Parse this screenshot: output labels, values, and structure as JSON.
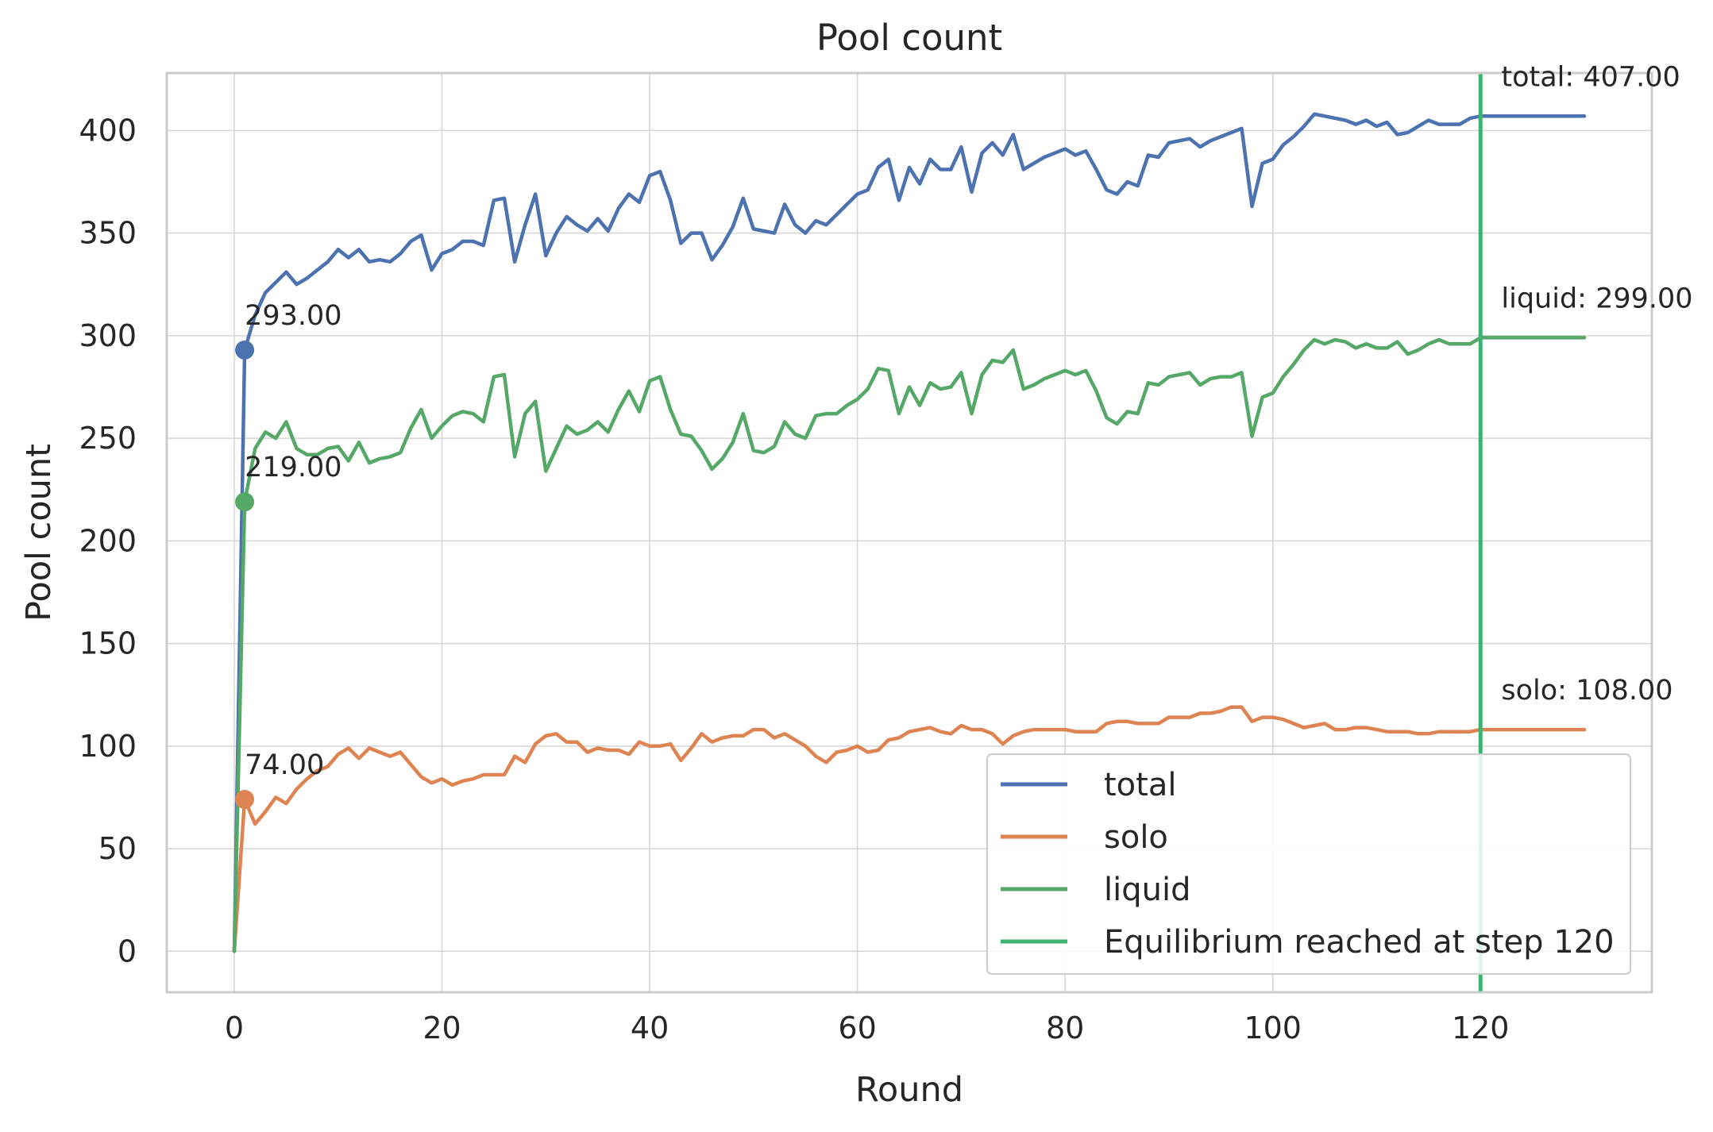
{
  "chart_data": {
    "type": "line",
    "title": "Pool count",
    "xlabel": "Round",
    "ylabel": "Pool count",
    "xlim": [
      -6.5,
      136.5
    ],
    "ylim": [
      -20,
      428
    ],
    "xticks": [
      0,
      20,
      40,
      60,
      80,
      100,
      120
    ],
    "yticks": [
      0,
      50,
      100,
      150,
      200,
      250,
      300,
      350,
      400
    ],
    "grid": true,
    "legend_position": "lower-right",
    "series": [
      {
        "name": "total",
        "color": "#4C72B0",
        "x": [
          0,
          1,
          2,
          3,
          4,
          5,
          6,
          7,
          8,
          9,
          10,
          11,
          12,
          13,
          14,
          15,
          16,
          17,
          18,
          19,
          20,
          21,
          22,
          23,
          24,
          25,
          26,
          27,
          28,
          29,
          30,
          31,
          32,
          33,
          34,
          35,
          36,
          37,
          38,
          39,
          40,
          41,
          42,
          43,
          44,
          45,
          46,
          47,
          48,
          49,
          50,
          51,
          52,
          53,
          54,
          55,
          56,
          57,
          58,
          59,
          60,
          61,
          62,
          63,
          64,
          65,
          66,
          67,
          68,
          69,
          70,
          71,
          72,
          73,
          74,
          75,
          76,
          77,
          78,
          79,
          80,
          81,
          82,
          83,
          84,
          85,
          86,
          87,
          88,
          89,
          90,
          91,
          92,
          93,
          94,
          95,
          96,
          97,
          98,
          99,
          100,
          101,
          102,
          103,
          104,
          105,
          106,
          107,
          108,
          109,
          110,
          111,
          112,
          113,
          114,
          115,
          116,
          117,
          118,
          119,
          120,
          121,
          122,
          123,
          124,
          125,
          126,
          127,
          128,
          129,
          130
        ],
        "values": [
          0,
          293,
          310,
          321,
          326,
          331,
          325,
          328,
          332,
          336,
          342,
          338,
          342,
          336,
          337,
          336,
          340,
          346,
          349,
          332,
          340,
          342,
          346,
          346,
          344,
          366,
          367,
          336,
          354,
          369,
          339,
          350,
          358,
          354,
          351,
          357,
          351,
          362,
          369,
          365,
          378,
          380,
          366,
          345,
          350,
          350,
          337,
          344,
          353,
          367,
          352,
          351,
          350,
          364,
          354,
          350,
          356,
          354,
          359,
          364,
          369,
          371,
          382,
          386,
          366,
          382,
          374,
          386,
          381,
          381,
          392,
          370,
          389,
          394,
          388,
          398,
          381,
          384,
          387,
          389,
          391,
          388,
          390,
          381,
          371,
          369,
          375,
          373,
          388,
          387,
          394,
          395,
          396,
          392,
          395,
          397,
          399,
          401,
          363,
          384,
          386,
          393,
          397,
          402,
          408,
          407,
          406,
          405,
          403,
          405,
          402,
          404,
          398,
          399,
          402,
          405,
          403,
          403,
          403,
          406,
          407,
          407,
          407,
          407,
          407,
          407,
          407,
          407,
          407,
          407,
          407
        ]
      },
      {
        "name": "solo",
        "color": "#DD8452",
        "x": [
          0,
          1,
          2,
          3,
          4,
          5,
          6,
          7,
          8,
          9,
          10,
          11,
          12,
          13,
          14,
          15,
          16,
          17,
          18,
          19,
          20,
          21,
          22,
          23,
          24,
          25,
          26,
          27,
          28,
          29,
          30,
          31,
          32,
          33,
          34,
          35,
          36,
          37,
          38,
          39,
          40,
          41,
          42,
          43,
          44,
          45,
          46,
          47,
          48,
          49,
          50,
          51,
          52,
          53,
          54,
          55,
          56,
          57,
          58,
          59,
          60,
          61,
          62,
          63,
          64,
          65,
          66,
          67,
          68,
          69,
          70,
          71,
          72,
          73,
          74,
          75,
          76,
          77,
          78,
          79,
          80,
          81,
          82,
          83,
          84,
          85,
          86,
          87,
          88,
          89,
          90,
          91,
          92,
          93,
          94,
          95,
          96,
          97,
          98,
          99,
          100,
          101,
          102,
          103,
          104,
          105,
          106,
          107,
          108,
          109,
          110,
          111,
          112,
          113,
          114,
          115,
          116,
          117,
          118,
          119,
          120,
          121,
          122,
          123,
          124,
          125,
          126,
          127,
          128,
          129,
          130
        ],
        "values": [
          0,
          74,
          62,
          68,
          75,
          72,
          79,
          84,
          88,
          90,
          96,
          99,
          94,
          99,
          97,
          95,
          97,
          91,
          85,
          82,
          84,
          81,
          83,
          84,
          86,
          86,
          86,
          95,
          92,
          101,
          105,
          106,
          102,
          102,
          97,
          99,
          98,
          98,
          96,
          102,
          100,
          100,
          101,
          93,
          99,
          106,
          102,
          104,
          105,
          105,
          108,
          108,
          104,
          106,
          103,
          100,
          95,
          92,
          97,
          98,
          100,
          97,
          98,
          103,
          104,
          107,
          108,
          109,
          107,
          106,
          110,
          108,
          108,
          106,
          101,
          105,
          107,
          108,
          108,
          108,
          108,
          107,
          107,
          107,
          111,
          112,
          112,
          111,
          111,
          111,
          114,
          114,
          114,
          116,
          116,
          117,
          119,
          119,
          112,
          114,
          114,
          113,
          111,
          109,
          110,
          111,
          108,
          108,
          109,
          109,
          108,
          107,
          107,
          107,
          106,
          106,
          107,
          107,
          107,
          107,
          108,
          108,
          108,
          108,
          108,
          108,
          108,
          108,
          108,
          108,
          108
        ]
      },
      {
        "name": "liquid",
        "color": "#55A868",
        "x": [
          0,
          1,
          2,
          3,
          4,
          5,
          6,
          7,
          8,
          9,
          10,
          11,
          12,
          13,
          14,
          15,
          16,
          17,
          18,
          19,
          20,
          21,
          22,
          23,
          24,
          25,
          26,
          27,
          28,
          29,
          30,
          31,
          32,
          33,
          34,
          35,
          36,
          37,
          38,
          39,
          40,
          41,
          42,
          43,
          44,
          45,
          46,
          47,
          48,
          49,
          50,
          51,
          52,
          53,
          54,
          55,
          56,
          57,
          58,
          59,
          60,
          61,
          62,
          63,
          64,
          65,
          66,
          67,
          68,
          69,
          70,
          71,
          72,
          73,
          74,
          75,
          76,
          77,
          78,
          79,
          80,
          81,
          82,
          83,
          84,
          85,
          86,
          87,
          88,
          89,
          90,
          91,
          92,
          93,
          94,
          95,
          96,
          97,
          98,
          99,
          100,
          101,
          102,
          103,
          104,
          105,
          106,
          107,
          108,
          109,
          110,
          111,
          112,
          113,
          114,
          115,
          116,
          117,
          118,
          119,
          120,
          121,
          122,
          123,
          124,
          125,
          126,
          127,
          128,
          129,
          130
        ],
        "values": [
          0,
          219,
          245,
          253,
          250,
          258,
          245,
          242,
          242,
          245,
          246,
          239,
          248,
          238,
          240,
          241,
          243,
          255,
          264,
          250,
          256,
          261,
          263,
          262,
          258,
          280,
          281,
          241,
          262,
          268,
          234,
          245,
          256,
          252,
          254,
          258,
          253,
          264,
          273,
          263,
          278,
          280,
          264,
          252,
          251,
          244,
          235,
          240,
          248,
          262,
          244,
          243,
          246,
          258,
          252,
          250,
          261,
          262,
          262,
          266,
          269,
          274,
          284,
          283,
          262,
          275,
          266,
          277,
          274,
          275,
          282,
          262,
          281,
          288,
          287,
          293,
          274,
          276,
          279,
          281,
          283,
          281,
          283,
          273,
          260,
          257,
          263,
          262,
          277,
          276,
          280,
          281,
          282,
          276,
          279,
          280,
          280,
          282,
          251,
          270,
          272,
          280,
          286,
          293,
          298,
          296,
          298,
          297,
          294,
          296,
          294,
          294,
          297,
          291,
          293,
          296,
          298,
          296,
          296,
          296,
          299,
          299,
          299,
          299,
          299,
          299,
          299,
          299,
          299,
          299,
          299
        ]
      },
      {
        "name": "Equilibrium reached at step 120",
        "color": "#3CB371",
        "type": "vline",
        "x": 120
      }
    ],
    "markers": [
      {
        "series": "total",
        "x": 1,
        "y": 293,
        "label": "293.00"
      },
      {
        "series": "liquid",
        "x": 1,
        "y": 219,
        "label": "219.00"
      },
      {
        "series": "solo",
        "x": 1,
        "y": 74,
        "label": "74.00"
      }
    ],
    "end_labels": [
      {
        "series": "total",
        "x": 122,
        "y": 407,
        "label": "total: 407.00"
      },
      {
        "series": "liquid",
        "x": 122,
        "y": 299,
        "label": "liquid: 299.00"
      },
      {
        "series": "solo",
        "x": 122,
        "y": 108,
        "label": "solo: 108.00"
      }
    ]
  }
}
